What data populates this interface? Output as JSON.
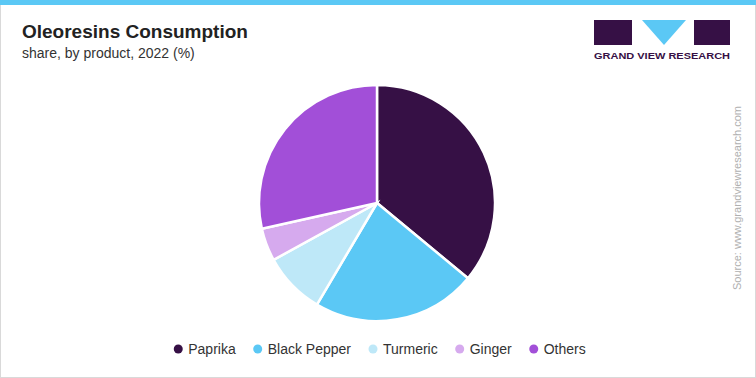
{
  "chart_data": {
    "type": "pie",
    "title": "Oleoresins Consumption",
    "subtitle": "share, by product, 2022 (%)",
    "categories": [
      "Paprika",
      "Black Pepper",
      "Turmeric",
      "Ginger",
      "Others"
    ],
    "values": [
      36,
      22.5,
      8.5,
      4.5,
      28.5
    ],
    "colors": [
      "#361045",
      "#5bc8f5",
      "#bee8f8",
      "#d6aaee",
      "#a24fd8"
    ],
    "legend": "bottom",
    "annotations": [
      "GRAND VIEW RESEARCH",
      "Source: www.grandviewresearch.com"
    ]
  }
}
